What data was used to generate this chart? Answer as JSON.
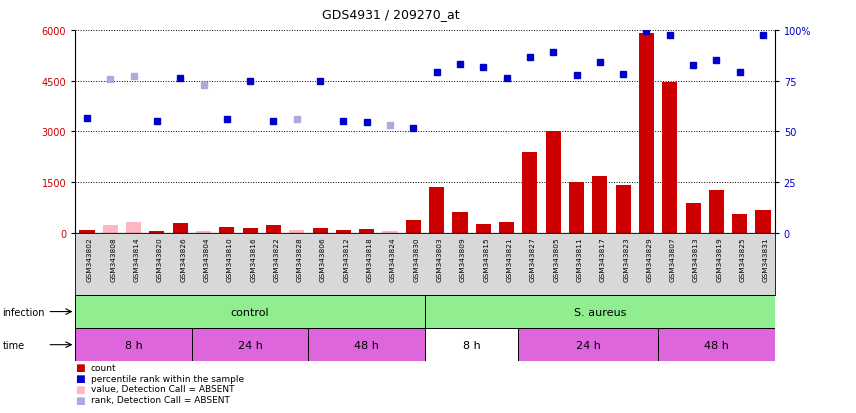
{
  "title": "GDS4931 / 209270_at",
  "samples": [
    "GSM343802",
    "GSM343808",
    "GSM343814",
    "GSM343820",
    "GSM343826",
    "GSM343804",
    "GSM343810",
    "GSM343816",
    "GSM343822",
    "GSM343828",
    "GSM343806",
    "GSM343812",
    "GSM343818",
    "GSM343824",
    "GSM343830",
    "GSM343803",
    "GSM343809",
    "GSM343815",
    "GSM343821",
    "GSM343827",
    "GSM343805",
    "GSM343811",
    "GSM343817",
    "GSM343823",
    "GSM343829",
    "GSM343807",
    "GSM343813",
    "GSM343819",
    "GSM343825",
    "GSM343831"
  ],
  "count_values": [
    100,
    220,
    320,
    50,
    280,
    50,
    170,
    150,
    220,
    100,
    140,
    75,
    110,
    60,
    390,
    1350,
    620,
    270,
    310,
    2400,
    3000,
    1520,
    1680,
    1430,
    5900,
    4450,
    870,
    1270,
    560,
    680
  ],
  "rank_values": [
    3400,
    4550,
    4650,
    3300,
    4580,
    4380,
    3380,
    4480,
    3310,
    3370,
    4500,
    3300,
    3290,
    3180,
    3090,
    4760,
    5010,
    4900,
    4570,
    5210,
    5360,
    4680,
    5060,
    4700,
    5960,
    5860,
    4960,
    5100,
    4760,
    5860
  ],
  "absent_mask": [
    false,
    true,
    true,
    false,
    false,
    true,
    false,
    false,
    false,
    true,
    false,
    false,
    false,
    true,
    false,
    false,
    false,
    false,
    false,
    false,
    false,
    false,
    false,
    false,
    false,
    false,
    false,
    false,
    false,
    false
  ],
  "infection_groups": [
    {
      "label": "control",
      "start": 0,
      "end": 15
    },
    {
      "label": "S. aureus",
      "start": 15,
      "end": 30
    }
  ],
  "time_groups": [
    {
      "label": "8 h",
      "start": 0,
      "end": 5,
      "magenta": true
    },
    {
      "label": "24 h",
      "start": 5,
      "end": 10,
      "magenta": true
    },
    {
      "label": "48 h",
      "start": 10,
      "end": 15,
      "magenta": true
    },
    {
      "label": "8 h",
      "start": 15,
      "end": 19,
      "magenta": false
    },
    {
      "label": "24 h",
      "start": 19,
      "end": 25,
      "magenta": true
    },
    {
      "label": "48 h",
      "start": 25,
      "end": 30,
      "magenta": true
    }
  ],
  "ylim_left": [
    0,
    6000
  ],
  "ylim_right": [
    0,
    100
  ],
  "yticks_left": [
    0,
    1500,
    3000,
    4500,
    6000
  ],
  "yticks_right": [
    0,
    25,
    50,
    75,
    100
  ],
  "bar_color": "#cc0000",
  "absent_bar_color": "#ffb6c1",
  "dot_color": "#0000cc",
  "absent_dot_color": "#aaaadd",
  "bg_color": "#d8d8d8",
  "infection_color": "#90ee90",
  "time_magenta": "#dd66dd",
  "time_white": "#ffffff",
  "legend_items": [
    {
      "color": "#cc0000",
      "label": "count"
    },
    {
      "color": "#0000cc",
      "label": "percentile rank within the sample"
    },
    {
      "color": "#ffb6c1",
      "label": "value, Detection Call = ABSENT"
    },
    {
      "color": "#aaaadd",
      "label": "rank, Detection Call = ABSENT"
    }
  ]
}
